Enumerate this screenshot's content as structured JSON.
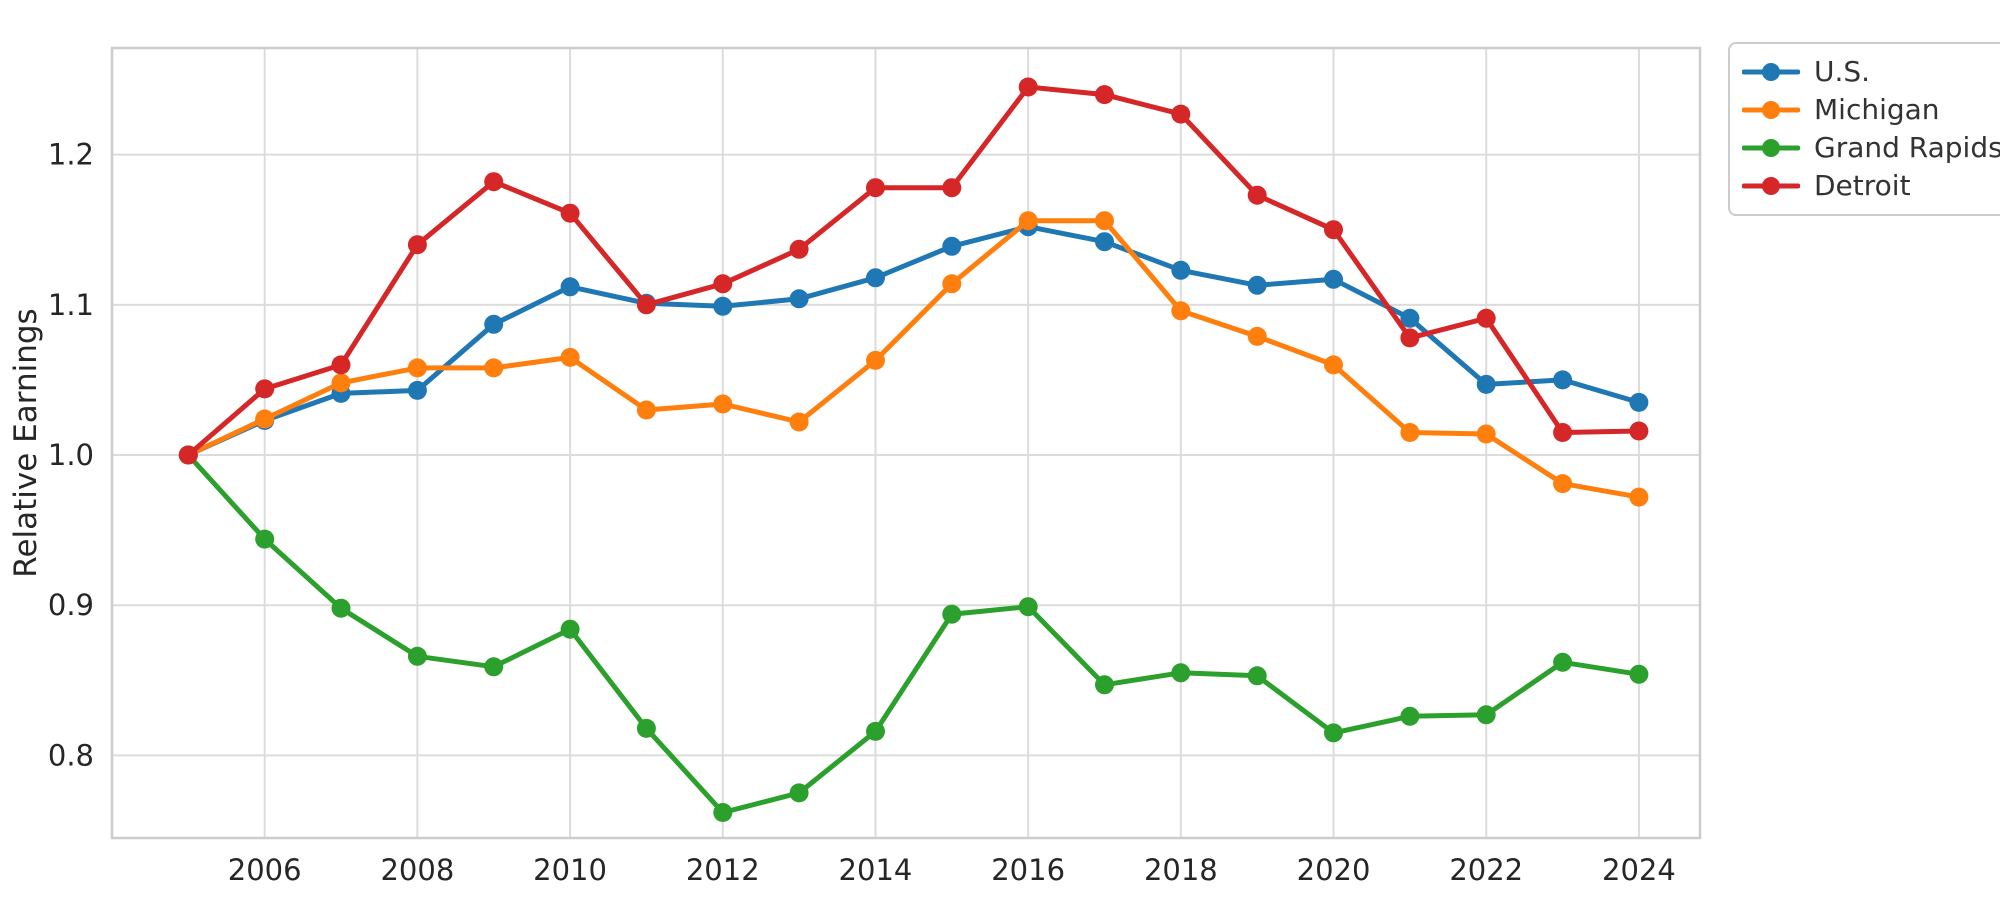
{
  "chart_data": {
    "type": "line",
    "title": "",
    "xlabel": "",
    "ylabel": "Relative Earnings",
    "grid": true,
    "legend_position": "top-right-outside",
    "background_color": "#ffffff",
    "grid_color": "#dcdcdc",
    "spine_color": "#cccccc",
    "tick_label_color": "#262626",
    "xlim": [
      2004.0,
      2024.8
    ],
    "ylim": [
      0.745,
      1.271
    ],
    "x_ticks": [
      2006,
      2008,
      2010,
      2012,
      2014,
      2016,
      2018,
      2020,
      2022,
      2024
    ],
    "y_ticks": [
      0.8,
      0.9,
      1.0,
      1.1,
      1.2
    ],
    "x": [
      2005,
      2006,
      2007,
      2008,
      2009,
      2010,
      2011,
      2012,
      2013,
      2014,
      2015,
      2016,
      2017,
      2018,
      2019,
      2020,
      2021,
      2022,
      2023,
      2024
    ],
    "series": [
      {
        "name": "U.S.",
        "color": "#1f77b4",
        "values": [
          1.0,
          1.023,
          1.041,
          1.043,
          1.087,
          1.112,
          1.101,
          1.099,
          1.104,
          1.118,
          1.139,
          1.152,
          1.142,
          1.123,
          1.113,
          1.117,
          1.091,
          1.047,
          1.05,
          1.035
        ]
      },
      {
        "name": "Michigan",
        "color": "#ff7f0e",
        "values": [
          1.0,
          1.024,
          1.048,
          1.058,
          1.058,
          1.065,
          1.03,
          1.034,
          1.022,
          1.063,
          1.114,
          1.156,
          1.156,
          1.096,
          1.079,
          1.06,
          1.015,
          1.014,
          0.981,
          0.972
        ]
      },
      {
        "name": "Grand Rapids",
        "color": "#2ca02c",
        "values": [
          1.0,
          0.944,
          0.898,
          0.866,
          0.859,
          0.884,
          0.818,
          0.762,
          0.775,
          0.816,
          0.894,
          0.899,
          0.847,
          0.855,
          0.853,
          0.815,
          0.826,
          0.827,
          0.862,
          0.854
        ]
      },
      {
        "name": "Detroit",
        "color": "#d62728",
        "values": [
          1.0,
          1.044,
          1.06,
          1.14,
          1.182,
          1.161,
          1.1,
          1.114,
          1.137,
          1.178,
          1.178,
          1.245,
          1.24,
          1.227,
          1.173,
          1.15,
          1.078,
          1.091,
          1.015,
          1.016
        ]
      }
    ]
  }
}
